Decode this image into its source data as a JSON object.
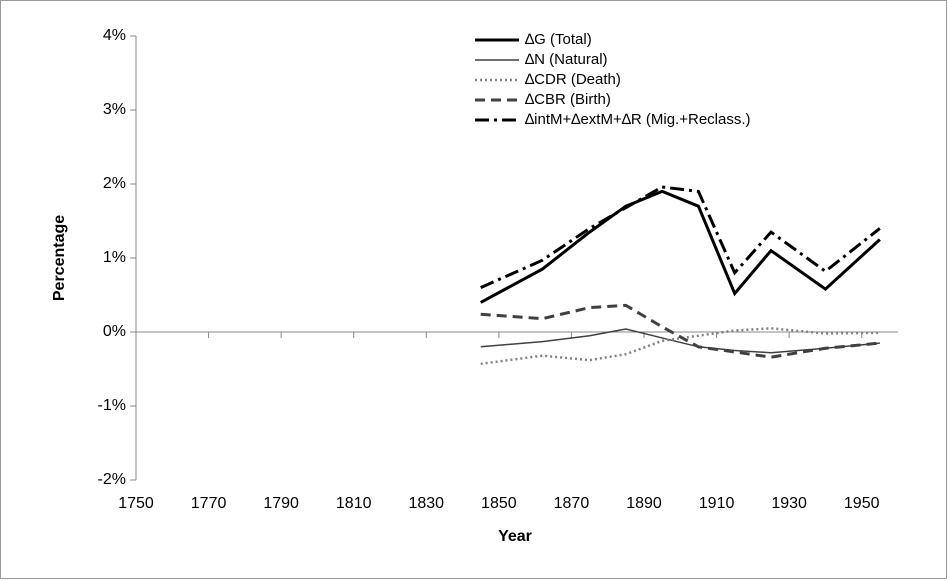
{
  "chart_data": {
    "type": "line",
    "x_label": "Year",
    "y_label": "Percentage",
    "x": [
      1845,
      1862,
      1875,
      1885,
      1895,
      1905,
      1915,
      1925,
      1940,
      1955
    ],
    "series": [
      {
        "name": "∆G (Total)",
        "color": "#000000",
        "dash": "solid",
        "width": 3,
        "values": [
          0.4,
          0.85,
          1.35,
          1.7,
          1.9,
          1.7,
          0.52,
          1.1,
          0.58,
          1.25
        ]
      },
      {
        "name": "∆N (Natural)",
        "color": "#404040",
        "dash": "solid",
        "width": 1.5,
        "values": [
          -0.2,
          -0.13,
          -0.05,
          0.04,
          -0.08,
          -0.2,
          -0.25,
          -0.28,
          -0.22,
          -0.15
        ]
      },
      {
        "name": "∆CDR (Death)",
        "color": "#808080",
        "dash": "dotted",
        "width": 2.5,
        "values": [
          -0.43,
          -0.32,
          -0.38,
          -0.3,
          -0.12,
          -0.05,
          0.02,
          0.05,
          -0.02,
          -0.01
        ]
      },
      {
        "name": "∆CBR (Birth)",
        "color": "#404040",
        "dash": "dashed",
        "width": 3,
        "values": [
          0.24,
          0.18,
          0.33,
          0.36,
          0.07,
          -0.2,
          -0.27,
          -0.34,
          -0.22,
          -0.15
        ]
      },
      {
        "name": "∆intM+∆extM+∆R (Mig.+Reclass.)",
        "color": "#000000",
        "dash": "dashdot",
        "width": 3,
        "values": [
          0.6,
          0.97,
          1.4,
          1.68,
          1.96,
          1.9,
          0.8,
          1.35,
          0.82,
          1.4
        ]
      }
    ],
    "xlim": [
      1750,
      1960
    ],
    "xticks": [
      1750,
      1770,
      1790,
      1810,
      1830,
      1850,
      1870,
      1890,
      1910,
      1930,
      1950
    ],
    "ylim": [
      -2,
      4
    ],
    "yticks": [
      {
        "value": -2,
        "label": "-2%"
      },
      {
        "value": -1,
        "label": "-1%"
      },
      {
        "value": 0,
        "label": "0%"
      },
      {
        "value": 1,
        "label": "1%"
      },
      {
        "value": 2,
        "label": "2%"
      },
      {
        "value": 3,
        "label": "3%"
      },
      {
        "value": 4,
        "label": "4%"
      }
    ],
    "legend": "top-right"
  }
}
